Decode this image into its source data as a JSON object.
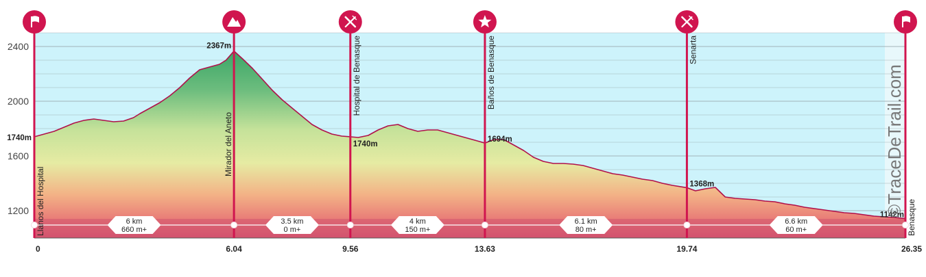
{
  "brand": "©TraceDeTrail.com",
  "chart_data": {
    "type": "area",
    "xlim": [
      0,
      26.35
    ],
    "ylim": [
      1000,
      2500
    ],
    "y_ticks": [
      1200,
      1600,
      2000,
      2400
    ],
    "y_tick_labels": [
      "1200",
      "1600",
      "2000",
      "2400"
    ],
    "grid": true,
    "profile": {
      "x": [
        0,
        0.3,
        0.6,
        0.9,
        1.2,
        1.5,
        1.8,
        2.1,
        2.4,
        2.7,
        3.0,
        3.2,
        3.5,
        3.8,
        4.1,
        4.4,
        4.7,
        5.0,
        5.3,
        5.6,
        5.8,
        6.04,
        6.3,
        6.6,
        6.9,
        7.2,
        7.5,
        7.8,
        8.1,
        8.4,
        8.7,
        9.0,
        9.3,
        9.56,
        9.8,
        10.1,
        10.4,
        10.7,
        11.0,
        11.3,
        11.6,
        11.9,
        12.2,
        12.5,
        12.8,
        13.1,
        13.4,
        13.63,
        13.9,
        14.2,
        14.5,
        14.8,
        15.1,
        15.4,
        15.7,
        16.0,
        16.3,
        16.6,
        16.9,
        17.2,
        17.5,
        17.8,
        18.1,
        18.4,
        18.7,
        19.0,
        19.3,
        19.74,
        20.0,
        20.3,
        20.6,
        20.9,
        21.2,
        21.5,
        21.8,
        22.1,
        22.4,
        22.7,
        23.0,
        23.3,
        23.6,
        23.9,
        24.2,
        24.5,
        24.8,
        25.1,
        25.4,
        25.7,
        26.0,
        26.35
      ],
      "elevation": [
        1740,
        1760,
        1780,
        1810,
        1840,
        1860,
        1870,
        1860,
        1850,
        1855,
        1880,
        1910,
        1950,
        1990,
        2040,
        2100,
        2170,
        2230,
        2250,
        2270,
        2300,
        2367,
        2310,
        2240,
        2160,
        2080,
        2010,
        1950,
        1890,
        1830,
        1790,
        1760,
        1745,
        1740,
        1735,
        1750,
        1790,
        1820,
        1830,
        1800,
        1780,
        1790,
        1790,
        1770,
        1750,
        1730,
        1710,
        1694,
        1720,
        1720,
        1680,
        1640,
        1590,
        1560,
        1545,
        1545,
        1540,
        1530,
        1510,
        1490,
        1470,
        1460,
        1445,
        1430,
        1420,
        1400,
        1385,
        1368,
        1345,
        1360,
        1370,
        1300,
        1290,
        1285,
        1280,
        1270,
        1265,
        1250,
        1240,
        1225,
        1215,
        1205,
        1195,
        1185,
        1180,
        1170,
        1160,
        1155,
        1150,
        1142
      ]
    },
    "x_ticks": [
      {
        "value": 0,
        "label": "0"
      },
      {
        "value": 6.04,
        "label": "6.04"
      },
      {
        "value": 9.56,
        "label": "9.56"
      },
      {
        "value": 13.63,
        "label": "13.63"
      },
      {
        "value": 19.74,
        "label": "19.74"
      },
      {
        "value": 26.35,
        "label": "26.35"
      }
    ],
    "waypoints": [
      {
        "km": 0,
        "name": "Llanos del Hospital",
        "icon": "flag-icon",
        "elevation_label": "1740m",
        "elev_value": 1740
      },
      {
        "km": 6.04,
        "name": "Mirador del Aneto",
        "icon": "mountain-icon",
        "elevation_label": "2367m",
        "elev_value": 2367
      },
      {
        "km": 9.56,
        "name": "Hospital de Benasque",
        "icon": "restaurant-icon",
        "elevation_label": "1740m",
        "elev_value": 1740
      },
      {
        "km": 13.63,
        "name": "Baños de Benasque",
        "icon": "star-icon",
        "elevation_label": "1694m",
        "elev_value": 1694
      },
      {
        "km": 19.74,
        "name": "Senarta",
        "icon": "restaurant-icon",
        "elevation_label": "1368m",
        "elev_value": 1368
      },
      {
        "km": 26.35,
        "name": "Benasque",
        "icon": "flag-icon",
        "elevation_label": "1142m",
        "elev_value": 1142
      }
    ],
    "segments": [
      {
        "distance": "6 km",
        "gain": "660 m+"
      },
      {
        "distance": "3.5 km",
        "gain": "0 m+"
      },
      {
        "distance": "4 km",
        "gain": "150 m+"
      },
      {
        "distance": "6.1 km",
        "gain": "80 m+"
      },
      {
        "distance": "6.6 km",
        "gain": "60 m+"
      }
    ],
    "colors": {
      "sky": "#cdf3fb",
      "line": "#b0104a",
      "marker": "#d0154f",
      "band": "#d2566f",
      "fill_high": "#3da86a",
      "fill_mid": "#d9ec9e",
      "fill_low": "#f2a07e",
      "fill_base": "#d4506e"
    }
  }
}
